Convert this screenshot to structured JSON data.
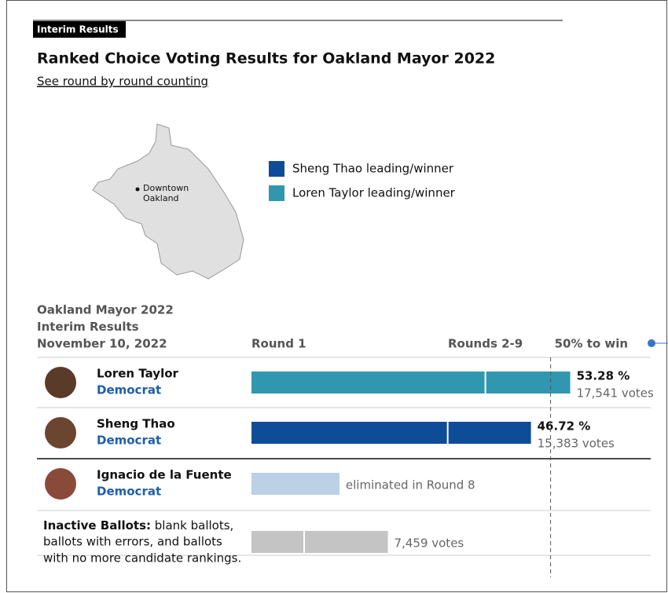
{
  "badge": "Interim Results",
  "title": "Ranked Choice Voting Results for Oakland Mayor 2022",
  "link": "See round by round counting",
  "map_label": [
    "Downtown",
    "Oakland"
  ],
  "legend": [
    {
      "label": "Sheng Thao leading/winner",
      "color": "#0f4c97"
    },
    {
      "label": "Loren Taylor leading/winner",
      "color": "#3197b0"
    }
  ],
  "chart_data": {
    "type": "bar",
    "orientation": "horizontal",
    "stacked": true,
    "heading": [
      "Oakland Mayor 2022",
      "Interim Results",
      "November 10, 2022"
    ],
    "categories": [
      "Loren Taylor",
      "Sheng Thao",
      "Ignacio de la Fuente",
      "Inactive Ballots:"
    ],
    "parties": [
      "Democrat",
      "Democrat",
      "Democrat",
      null
    ],
    "description": [
      "blank ballots,",
      "ballots with errors, and  ballots",
      "with no more candidate rankings."
    ],
    "row_colors": [
      "#3197b0",
      "#0f4c97",
      "#bcd0e6",
      "#c4c4c4"
    ],
    "series": [
      {
        "name": "Round 1",
        "values": [
          39.1,
          32.8,
          14.7,
          8.8
        ]
      },
      {
        "name": "Rounds 2-9",
        "values": [
          14.18,
          13.92,
          null,
          14.0
        ]
      }
    ],
    "totals": [
      53.28,
      46.72,
      null,
      null
    ],
    "value_labels": [
      "53.28 %",
      "46.72 %",
      null,
      null
    ],
    "notes": [
      "17,541 votes",
      "15,383 votes",
      "eliminated in Round 8",
      "7,459 votes"
    ],
    "threshold": {
      "value": 50,
      "label": "50% to win"
    },
    "xlim": [
      0,
      67
    ]
  }
}
